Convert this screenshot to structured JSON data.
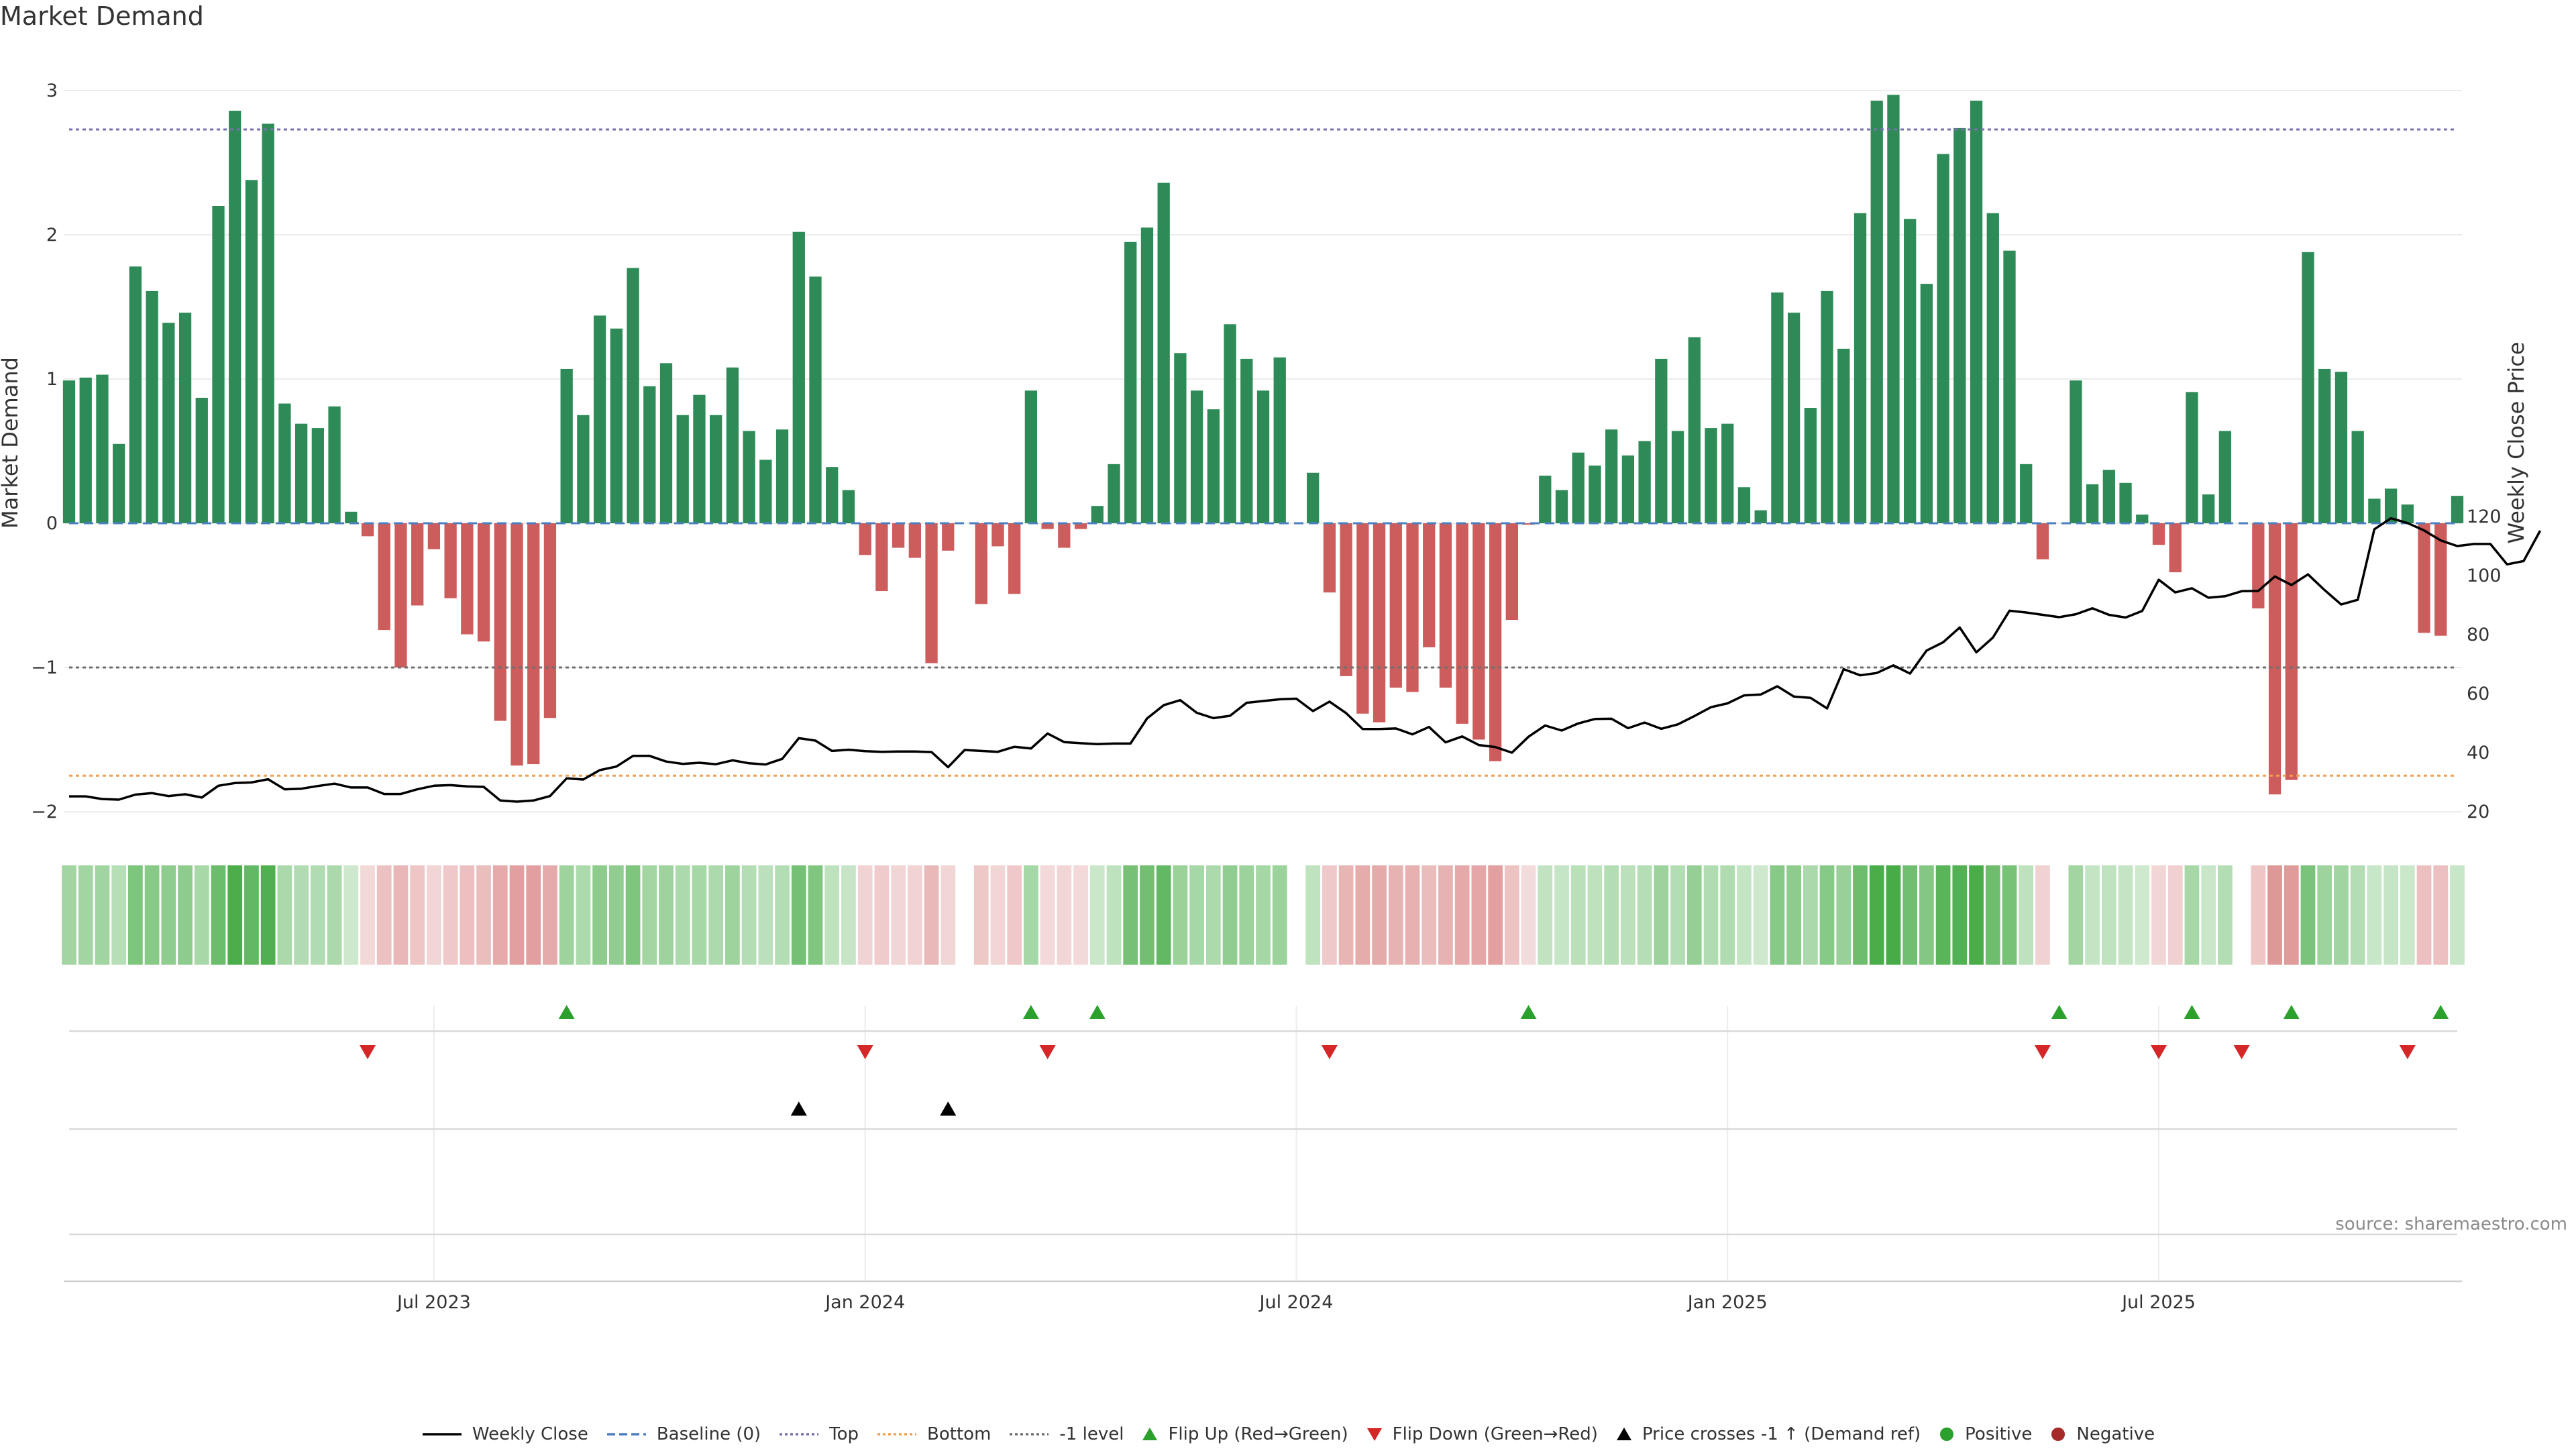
{
  "title": "Market Demand",
  "source": "source: sharemaestro.com",
  "legend": [
    {
      "id": "weekly-close",
      "label": "Weekly Close",
      "symbol": "line-solid",
      "color": "#000000"
    },
    {
      "id": "baseline",
      "label": "Baseline (0)",
      "symbol": "line-dashed",
      "color": "#4a7fc1"
    },
    {
      "id": "top",
      "label": "Top",
      "symbol": "line-dotted",
      "color": "#7b6fb0"
    },
    {
      "id": "bottom",
      "label": "Bottom",
      "symbol": "line-dotted",
      "color": "#f0a050"
    },
    {
      "id": "minus-one",
      "label": "-1 level",
      "symbol": "line-dotted",
      "color": "#707070"
    },
    {
      "id": "flip-up",
      "label": "Flip Up (Red→Green)",
      "symbol": "triangle-up",
      "color": "#2ca02c"
    },
    {
      "id": "flip-down",
      "label": "Flip Down (Green→Red)",
      "symbol": "triangle-down",
      "color": "#d62728"
    },
    {
      "id": "price-cross",
      "label": "Price crosses -1 ↑ (Demand ref)",
      "symbol": "triangle-up",
      "color": "#000000"
    },
    {
      "id": "positive",
      "label": "Positive",
      "symbol": "dot",
      "color": "#2ca02c"
    },
    {
      "id": "negative",
      "label": "Negative",
      "symbol": "dot",
      "color": "#a52a2a"
    }
  ],
  "colors": {
    "positive_bar": "#2e8b57",
    "negative_bar": "#cd5c5c",
    "price_line": "#000000",
    "grid": "#ececec",
    "heat_pos": "#2ca02c",
    "heat_neg": "#cd5c5c"
  },
  "chart_data": {
    "type": "bar",
    "ylabel_left": "Market Demand",
    "ylabel_right": "Weekly Close Price",
    "ylim_left": [
      -2,
      3.3
    ],
    "ylim_right": [
      20,
      124
    ],
    "left_ticks": [
      {
        "value": 3,
        "label": "3"
      },
      {
        "value": 2,
        "label": "2"
      },
      {
        "value": 1,
        "label": "1"
      },
      {
        "value": 0,
        "label": "0"
      },
      {
        "value": -1,
        "label": "−1"
      },
      {
        "value": -2,
        "label": "−2"
      }
    ],
    "right_ticks": [
      {
        "value": 120,
        "label": "120"
      },
      {
        "value": 100,
        "label": "100"
      },
      {
        "value": 80,
        "label": "80"
      },
      {
        "value": 60,
        "label": "60"
      },
      {
        "value": 40,
        "label": "40"
      },
      {
        "value": 20,
        "label": "20"
      }
    ],
    "x_ticks": [
      {
        "index": 22,
        "label": "Jul 2023"
      },
      {
        "index": 48,
        "label": "Jan 2024"
      },
      {
        "index": 74,
        "label": "Jul 2024"
      },
      {
        "index": 100,
        "label": "Jan 2025"
      },
      {
        "index": 126,
        "label": "Jul 2025"
      }
    ],
    "reference_lines": {
      "baseline": 0,
      "top": 2.73,
      "bottom": -1.75,
      "minus_one": -1
    },
    "demand": [
      0.99,
      1.01,
      1.03,
      0.55,
      1.78,
      1.61,
      1.39,
      1.46,
      0.87,
      2.2,
      2.86,
      2.38,
      2.77,
      0.83,
      0.69,
      0.66,
      0.81,
      0.08,
      -0.09,
      -0.74,
      -1.0,
      -0.57,
      -0.18,
      -0.52,
      -0.77,
      -0.82,
      -1.37,
      -1.68,
      -1.67,
      -1.35,
      1.07,
      0.75,
      1.44,
      1.35,
      1.77,
      0.95,
      1.11,
      0.75,
      0.89,
      0.75,
      1.08,
      0.64,
      0.44,
      0.65,
      2.02,
      1.71,
      0.39,
      0.23,
      -0.22,
      -0.47,
      -0.17,
      -0.24,
      -0.97,
      -0.19,
      0.0,
      -0.56,
      -0.16,
      -0.49,
      0.92,
      -0.04,
      -0.17,
      -0.04,
      0.12,
      0.41,
      1.95,
      2.05,
      2.36,
      1.18,
      0.92,
      0.79,
      1.38,
      1.14,
      0.92,
      1.15,
      0.0,
      0.35,
      -0.48,
      -1.06,
      -1.32,
      -1.38,
      -1.14,
      -1.17,
      -0.86,
      -1.14,
      -1.39,
      -1.5,
      -1.65,
      -0.67,
      -0.01,
      0.33,
      0.23,
      0.49,
      0.4,
      0.65,
      0.47,
      0.57,
      1.14,
      0.64,
      1.29,
      0.66,
      0.69,
      0.25,
      0.09,
      1.6,
      1.46,
      0.8,
      1.61,
      1.21,
      2.15,
      2.93,
      2.97,
      2.11,
      1.66,
      2.56,
      2.74,
      2.93,
      2.15,
      1.89,
      0.41,
      -0.25,
      0.0,
      0.99,
      0.27,
      0.37,
      0.28,
      0.06,
      -0.15,
      -0.34,
      0.91,
      0.2,
      0.64,
      0.0,
      -0.59,
      -1.88,
      -1.78,
      1.88,
      1.07,
      1.05,
      0.64,
      0.17,
      0.24,
      0.13,
      -0.76,
      -0.78,
      0.19
    ],
    "close": [
      25.2,
      25.2,
      24.3,
      24.1,
      25.8,
      26.3,
      25.3,
      25.9,
      24.8,
      28.8,
      29.7,
      29.9,
      31.0,
      27.6,
      27.8,
      28.7,
      29.5,
      28.2,
      28.2,
      26.0,
      26.0,
      27.6,
      28.8,
      29.0,
      28.6,
      28.4,
      23.8,
      23.4,
      23.8,
      25.3,
      31.3,
      30.9,
      34.1,
      35.3,
      38.9,
      38.9,
      37.0,
      36.2,
      36.6,
      36.1,
      37.4,
      36.4,
      36.0,
      37.9,
      44.9,
      44.1,
      40.6,
      41.0,
      40.5,
      40.3,
      40.4,
      40.4,
      40.2,
      35.1,
      40.9,
      40.6,
      40.3,
      42.0,
      41.4,
      46.5,
      43.6,
      43.2,
      42.9,
      43.1,
      43.1,
      51.6,
      56.1,
      57.8,
      53.5,
      51.7,
      52.5,
      56.9,
      57.5,
      58.1,
      58.3,
      54.1,
      57.3,
      53.4,
      48.0,
      48.0,
      48.2,
      46.2,
      48.7,
      43.5,
      45.5,
      42.6,
      41.9,
      40.0,
      45.4,
      49.2,
      47.5,
      49.9,
      51.4,
      51.5,
      48.3,
      50.2,
      48.1,
      49.6,
      52.4,
      55.4,
      56.7,
      59.4,
      59.7,
      62.5,
      59.0,
      58.6,
      55.0,
      68.3,
      66.2,
      67.0,
      69.6,
      66.8,
      74.6,
      77.4,
      82.4,
      74.0,
      79.0,
      88.1,
      87.5,
      86.7,
      85.9,
      86.9,
      88.9,
      86.7,
      85.8,
      88.0,
      98.6,
      94.3,
      95.7,
      92.5,
      93.0,
      94.7,
      94.8,
      99.7,
      96.8,
      100.4,
      95.1,
      90.2,
      91.8,
      115.7,
      119.4,
      117.8,
      115.3,
      111.9,
      110.0,
      110.7,
      110.7,
      103.8,
      104.9,
      115.2
    ],
    "flip_up": [
      30,
      58,
      62,
      88,
      120,
      128,
      134,
      143
    ],
    "flip_down": [
      18,
      48,
      59,
      76,
      119,
      126,
      131,
      141
    ],
    "price_cross_up": [
      44,
      53
    ]
  }
}
